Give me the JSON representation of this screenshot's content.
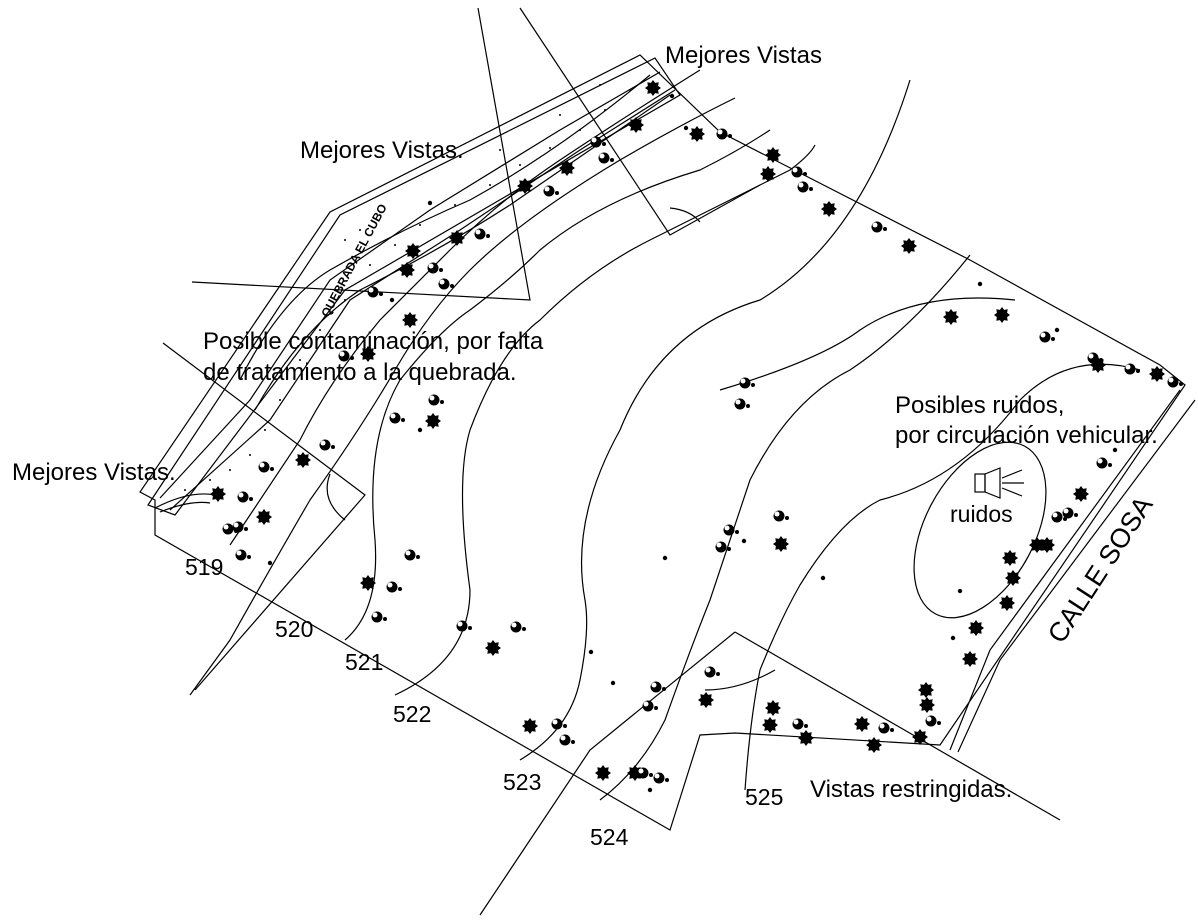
{
  "annotations": {
    "best_views_top": "Mejores Vistas",
    "best_views_mid": "Mejores Vistas.",
    "best_views_left": "Mejores Vistas.",
    "contamination_line1": "Posible contaminación, por falta",
    "contamination_line2": "de tratamiento a la quebrada.",
    "noise_line1": "Posibles ruidos,",
    "noise_line2": "por circulación vehicular.",
    "noise_short": "ruidos",
    "restricted_views": "Vistas restringidas.",
    "street_name": "CALLE SOSA",
    "creek_name": "QUEBRADA EL CUBO"
  },
  "contours": {
    "c519": "519",
    "c520": "520",
    "c521": "521",
    "c522": "522",
    "c523": "523",
    "c524": "524",
    "c525": "525"
  },
  "colors": {
    "ink": "#000000",
    "background": "#ffffff"
  }
}
